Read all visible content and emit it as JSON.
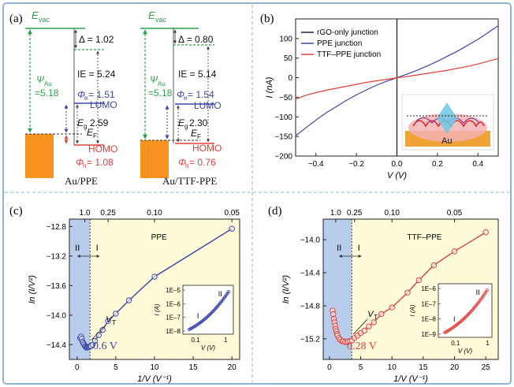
{
  "colors": {
    "frame": "#8fb4d8",
    "ppe": "#3c46a8",
    "ttf": "#e2413a",
    "rgo": "#202030",
    "green": "#2ea44b",
    "orange": "#f7931e",
    "yellow_bg": "#fffbd9",
    "blue_bg": "#b8cdeb"
  },
  "panel_a": {
    "label": "(a)",
    "left": {
      "evac": "E",
      "evac_sub": "vac",
      "delta": "Δ = 1.02",
      "ie": "IE = 5.24",
      "psi": "Ψ",
      "psi_sub": "Au",
      "psi_val": "=5.18",
      "phi_e": "Φ",
      "phi_e_sub": "e",
      "phi_e_val": "= 1.51",
      "lumo": "LUMO",
      "eg": "E",
      "eg_sub": "g",
      "eg_val": "2.59",
      "ef": "E",
      "ef_sub": "F",
      "homo": "HOMO",
      "phi_h": "Φ",
      "phi_h_sub": "h",
      "phi_h_val": "= 1.08",
      "caption": "Au/PPE"
    },
    "right": {
      "evac": "E",
      "evac_sub": "vac",
      "delta": "Δ = 0.80",
      "ie": "IE = 5.14",
      "psi": "Ψ",
      "psi_sub": "Au",
      "psi_val": "=5.18",
      "phi_e": "Φ",
      "phi_e_sub": "e",
      "phi_e_val": "= 1.54",
      "lumo": "LUMO",
      "eg": "E",
      "eg_sub": "g",
      "eg_val": "2.30",
      "ef": "E",
      "ef_sub": "F",
      "homo": "HOMO",
      "phi_h": "Φ",
      "phi_h_sub": "h",
      "phi_h_val": "= 0.76",
      "caption": "Au/TTF-PPE"
    }
  },
  "panel_b": {
    "label": "(b)",
    "inset_label": "Au"
  },
  "panel_c": {
    "label": "(c)",
    "plot_title": "PPE",
    "region_ii": "II",
    "region_i": "I",
    "vt": "V",
    "vt_sub": "T",
    "annotation": "0.6 V",
    "ylabel": "ln (I/V²)",
    "xlabel": "1/V (V⁻¹)",
    "inset_xlabel": "V (V)",
    "inset_ylabel": "I (A)",
    "inset_region_i": "I",
    "inset_region_ii": "II"
  },
  "panel_d": {
    "label": "(d)",
    "plot_title": "TTF–PPE",
    "region_ii": "II",
    "region_i": "I",
    "vt": "V",
    "vt_sub": "T",
    "annotation": "0.28 V",
    "ylabel": "ln (I/V²)",
    "xlabel": "1/V (V⁻¹)",
    "inset_xlabel": "V (V)",
    "inset_ylabel": "I (A)",
    "inset_region_i": "I",
    "inset_region_ii": "II"
  },
  "chart_data": [
    {
      "id": "b",
      "type": "line",
      "title": "",
      "xlabel": "V (V)",
      "ylabel": "I (nA)",
      "xlim": [
        -0.5,
        0.5
      ],
      "ylim": [
        -200,
        150
      ],
      "xticks": [
        -0.4,
        -0.2,
        0.0,
        0.2,
        0.4
      ],
      "xtick_labels": [
        "−0.4",
        "−0.2",
        "0.0",
        "0.2",
        "0.4"
      ],
      "yticks": [
        -200,
        -150,
        -100,
        -50,
        0,
        50,
        100
      ],
      "ytick_labels": [
        "−200",
        "−150",
        "−100",
        "−50",
        "0",
        "50",
        "100"
      ],
      "legend": [
        "rGO-only junction",
        "PPE junction",
        "TTF–PPE junction"
      ],
      "series": [
        {
          "name": "rGO-only junction",
          "x": [
            0,
            0
          ],
          "y": [
            -200,
            150
          ]
        },
        {
          "name": "PPE junction",
          "x": [
            -0.5,
            -0.45,
            -0.4,
            -0.35,
            -0.3,
            -0.25,
            -0.2,
            -0.15,
            -0.1,
            -0.05,
            0,
            0.05,
            0.1,
            0.15,
            0.2,
            0.25,
            0.3,
            0.35,
            0.4,
            0.45,
            0.5
          ],
          "y": [
            -148,
            -128,
            -108,
            -90,
            -74,
            -58,
            -44,
            -31,
            -19,
            -9,
            0,
            9,
            19,
            30,
            42,
            55,
            68,
            83,
            98,
            115,
            133
          ]
        },
        {
          "name": "TTF–PPE junction",
          "x": [
            -0.5,
            -0.45,
            -0.4,
            -0.35,
            -0.3,
            -0.25,
            -0.2,
            -0.15,
            -0.1,
            -0.05,
            0,
            0.05,
            0.1,
            0.15,
            0.2,
            0.25,
            0.3,
            0.35,
            0.4,
            0.45,
            0.5
          ],
          "y": [
            -55,
            -45,
            -38,
            -32,
            -27,
            -22,
            -17,
            -12,
            -8,
            -4,
            0,
            3,
            7,
            11,
            15,
            19,
            24,
            29,
            35,
            42,
            49
          ]
        }
      ]
    },
    {
      "id": "c",
      "type": "line",
      "title": "PPE",
      "xlabel": "1/V (V⁻¹)",
      "ylabel": "ln (I/V²)",
      "xlim": [
        -1,
        21
      ],
      "ylim": [
        -14.6,
        -12.7
      ],
      "xticks": [
        0,
        5,
        10,
        15,
        20
      ],
      "xtick_labels": [
        "0",
        "5",
        "10",
        "15",
        "20"
      ],
      "yticks": [
        -14.4,
        -14.0,
        -13.6,
        -13.2,
        -12.8
      ],
      "ytick_labels": [
        "−14.4",
        "−14.0",
        "−13.6",
        "−13.2",
        "−12.8"
      ],
      "top_ticks": [
        1,
        4,
        10,
        20
      ],
      "top_tick_labels": [
        "1.0",
        "0.25",
        "0.10",
        "0.05"
      ],
      "vt": 1.67,
      "x": [
        0.4,
        0.5,
        0.6,
        0.7,
        0.8,
        0.9,
        1.0,
        1.1,
        1.2,
        1.3,
        1.4,
        1.5,
        1.6,
        1.7,
        1.8,
        2.0,
        2.3,
        2.8,
        3.3,
        4.0,
        5.0,
        6.7,
        10.0,
        20.0
      ],
      "y": [
        -14.31,
        -14.29,
        -14.32,
        -14.36,
        -14.38,
        -14.4,
        -14.42,
        -14.43,
        -14.44,
        -14.44,
        -14.43,
        -14.43,
        -14.43,
        -14.42,
        -14.42,
        -14.4,
        -14.35,
        -14.27,
        -14.2,
        -14.08,
        -13.98,
        -13.8,
        -13.48,
        -12.83
      ]
    },
    {
      "id": "d",
      "type": "line",
      "title": "TTF–PPE",
      "xlabel": "1/V (V⁻¹)",
      "ylabel": "ln (I/V²)",
      "xlim": [
        -1,
        27
      ],
      "ylim": [
        -15.45,
        -13.75
      ],
      "xticks": [
        0,
        5,
        10,
        15,
        20,
        25
      ],
      "xtick_labels": [
        "0",
        "5",
        "10",
        "15",
        "20",
        "25"
      ],
      "yticks": [
        -15.2,
        -14.8,
        -14.4,
        -14.0
      ],
      "ytick_labels": [
        "−15.2",
        "−14.8",
        "−14.4",
        "−14.0"
      ],
      "top_ticks": [
        1,
        4,
        10,
        20
      ],
      "top_tick_labels": [
        "1.0",
        "0.25",
        "0.10",
        "0.05"
      ],
      "vt": 3.57,
      "x": [
        0.5,
        0.6,
        0.7,
        0.8,
        0.9,
        1.0,
        1.1,
        1.2,
        1.3,
        1.5,
        1.7,
        2.0,
        2.2,
        2.5,
        2.8,
        3.0,
        3.3,
        3.6,
        4.0,
        4.5,
        5.0,
        5.6,
        6.3,
        7.1,
        8.3,
        10.0,
        12.5,
        14.3,
        16.7,
        20.0,
        25.0
      ],
      "y": [
        -14.86,
        -14.9,
        -14.96,
        -15.0,
        -15.04,
        -15.08,
        -15.11,
        -15.14,
        -15.16,
        -15.19,
        -15.21,
        -15.23,
        -15.23,
        -15.24,
        -15.24,
        -15.23,
        -15.23,
        -15.22,
        -15.19,
        -15.16,
        -15.13,
        -15.1,
        -15.05,
        -15.0,
        -14.9,
        -14.82,
        -14.64,
        -14.49,
        -14.31,
        -14.14,
        -13.91
      ]
    }
  ]
}
